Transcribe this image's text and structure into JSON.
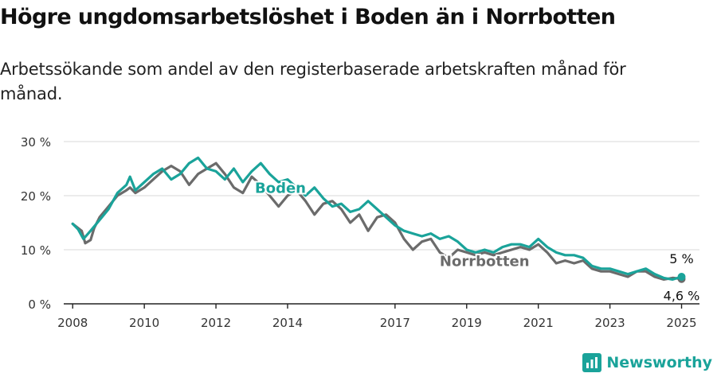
{
  "header": {
    "title": "Högre ungdomsarbetslöshet i Boden än i Norrbotten",
    "subtitle": "Arbetssökande som andel av den registerbaserade arbetskraften månad för månad."
  },
  "brand": {
    "name": "Newsworthy",
    "color": "#1aa39a",
    "icon": "bar-chart-logo-icon"
  },
  "chart_data": {
    "type": "line",
    "xlim": [
      2007.75,
      2025.5
    ],
    "ylim": [
      0,
      30
    ],
    "x_ticks": [
      2008,
      2010,
      2012,
      2014,
      2017,
      2019,
      2021,
      2023,
      2025
    ],
    "x_tick_labels": [
      "2008",
      "2010",
      "2012",
      "2014",
      "2017",
      "2019",
      "2021",
      "2023",
      "2025"
    ],
    "y_ticks": [
      0,
      10,
      20,
      30
    ],
    "y_tick_labels": [
      "0 %",
      "10 %",
      "20 %",
      "30 %"
    ],
    "grid": true,
    "series": [
      {
        "name": "Norrbotten",
        "color": "#6b6b6b",
        "end_label": "4,6 %",
        "points": [
          [
            2008.0,
            14.8
          ],
          [
            2008.25,
            13.5
          ],
          [
            2008.35,
            11.2
          ],
          [
            2008.5,
            11.8
          ],
          [
            2008.6,
            14.0
          ],
          [
            2008.75,
            16.0
          ],
          [
            2009.0,
            18.0
          ],
          [
            2009.25,
            20.0
          ],
          [
            2009.5,
            21.0
          ],
          [
            2009.6,
            21.5
          ],
          [
            2009.75,
            20.5
          ],
          [
            2010.0,
            21.5
          ],
          [
            2010.25,
            23.0
          ],
          [
            2010.5,
            24.5
          ],
          [
            2010.75,
            25.5
          ],
          [
            2011.0,
            24.5
          ],
          [
            2011.25,
            22.0
          ],
          [
            2011.5,
            24.0
          ],
          [
            2011.75,
            25.0
          ],
          [
            2012.0,
            26.0
          ],
          [
            2012.25,
            24.0
          ],
          [
            2012.5,
            21.5
          ],
          [
            2012.75,
            20.5
          ],
          [
            2013.0,
            23.5
          ],
          [
            2013.25,
            22.0
          ],
          [
            2013.5,
            20.0
          ],
          [
            2013.75,
            18.0
          ],
          [
            2014.0,
            20.0
          ],
          [
            2014.25,
            21.0
          ],
          [
            2014.5,
            19.0
          ],
          [
            2014.75,
            16.5
          ],
          [
            2015.0,
            18.5
          ],
          [
            2015.25,
            19.0
          ],
          [
            2015.5,
            17.5
          ],
          [
            2015.75,
            15.0
          ],
          [
            2016.0,
            16.5
          ],
          [
            2016.25,
            13.5
          ],
          [
            2016.5,
            16.0
          ],
          [
            2016.75,
            16.5
          ],
          [
            2017.0,
            15.0
          ],
          [
            2017.25,
            12.0
          ],
          [
            2017.5,
            10.0
          ],
          [
            2017.75,
            11.5
          ],
          [
            2018.0,
            12.0
          ],
          [
            2018.25,
            9.5
          ],
          [
            2018.5,
            8.5
          ],
          [
            2018.75,
            10.0
          ],
          [
            2019.0,
            9.5
          ],
          [
            2019.25,
            9.0
          ],
          [
            2019.5,
            9.5
          ],
          [
            2019.75,
            9.0
          ],
          [
            2020.0,
            9.5
          ],
          [
            2020.25,
            10.0
          ],
          [
            2020.5,
            10.5
          ],
          [
            2020.75,
            10.0
          ],
          [
            2021.0,
            11.0
          ],
          [
            2021.25,
            9.5
          ],
          [
            2021.5,
            7.5
          ],
          [
            2021.75,
            8.0
          ],
          [
            2022.0,
            7.5
          ],
          [
            2022.25,
            8.0
          ],
          [
            2022.5,
            6.5
          ],
          [
            2022.75,
            6.0
          ],
          [
            2023.0,
            6.0
          ],
          [
            2023.25,
            5.5
          ],
          [
            2023.5,
            5.0
          ],
          [
            2023.75,
            6.0
          ],
          [
            2024.0,
            6.0
          ],
          [
            2024.25,
            5.0
          ],
          [
            2024.5,
            4.5
          ],
          [
            2024.75,
            4.8
          ],
          [
            2025.0,
            4.6
          ]
        ]
      },
      {
        "name": "Boden",
        "color": "#1aa39a",
        "end_label": "5 %",
        "points": [
          [
            2008.0,
            14.8
          ],
          [
            2008.15,
            13.8
          ],
          [
            2008.3,
            12.0
          ],
          [
            2008.5,
            13.5
          ],
          [
            2008.75,
            15.5
          ],
          [
            2009.0,
            17.5
          ],
          [
            2009.25,
            20.5
          ],
          [
            2009.5,
            22.0
          ],
          [
            2009.6,
            23.5
          ],
          [
            2009.75,
            21.0
          ],
          [
            2010.0,
            22.5
          ],
          [
            2010.25,
            24.0
          ],
          [
            2010.5,
            25.0
          ],
          [
            2010.75,
            23.0
          ],
          [
            2011.0,
            24.0
          ],
          [
            2011.25,
            26.0
          ],
          [
            2011.5,
            27.0
          ],
          [
            2011.75,
            25.0
          ],
          [
            2012.0,
            24.5
          ],
          [
            2012.25,
            23.0
          ],
          [
            2012.5,
            25.0
          ],
          [
            2012.75,
            22.5
          ],
          [
            2013.0,
            24.5
          ],
          [
            2013.25,
            26.0
          ],
          [
            2013.5,
            24.0
          ],
          [
            2013.75,
            22.5
          ],
          [
            2014.0,
            23.0
          ],
          [
            2014.25,
            21.5
          ],
          [
            2014.5,
            20.0
          ],
          [
            2014.75,
            21.5
          ],
          [
            2015.0,
            19.5
          ],
          [
            2015.25,
            18.0
          ],
          [
            2015.5,
            18.5
          ],
          [
            2015.75,
            17.0
          ],
          [
            2016.0,
            17.5
          ],
          [
            2016.25,
            19.0
          ],
          [
            2016.5,
            17.5
          ],
          [
            2016.75,
            16.0
          ],
          [
            2017.0,
            14.5
          ],
          [
            2017.25,
            13.5
          ],
          [
            2017.5,
            13.0
          ],
          [
            2017.75,
            12.5
          ],
          [
            2018.0,
            13.0
          ],
          [
            2018.25,
            12.0
          ],
          [
            2018.5,
            12.5
          ],
          [
            2018.75,
            11.5
          ],
          [
            2019.0,
            10.0
          ],
          [
            2019.25,
            9.5
          ],
          [
            2019.5,
            10.0
          ],
          [
            2019.75,
            9.5
          ],
          [
            2020.0,
            10.5
          ],
          [
            2020.25,
            11.0
          ],
          [
            2020.5,
            11.0
          ],
          [
            2020.75,
            10.5
          ],
          [
            2021.0,
            12.0
          ],
          [
            2021.25,
            10.5
          ],
          [
            2021.5,
            9.5
          ],
          [
            2021.75,
            9.0
          ],
          [
            2022.0,
            9.0
          ],
          [
            2022.25,
            8.5
          ],
          [
            2022.5,
            7.0
          ],
          [
            2022.75,
            6.5
          ],
          [
            2023.0,
            6.5
          ],
          [
            2023.25,
            6.0
          ],
          [
            2023.5,
            5.5
          ],
          [
            2023.75,
            6.0
          ],
          [
            2024.0,
            6.5
          ],
          [
            2024.25,
            5.5
          ],
          [
            2024.5,
            4.8
          ],
          [
            2024.75,
            4.5
          ],
          [
            2025.0,
            5.0
          ]
        ]
      }
    ],
    "inline_labels": [
      {
        "series": "Boden",
        "text": "Boden",
        "x": 2013.8,
        "y": 20.5
      },
      {
        "series": "Norrbotten",
        "text": "Norrbotten",
        "x": 2019.5,
        "y": 7.0
      }
    ]
  }
}
